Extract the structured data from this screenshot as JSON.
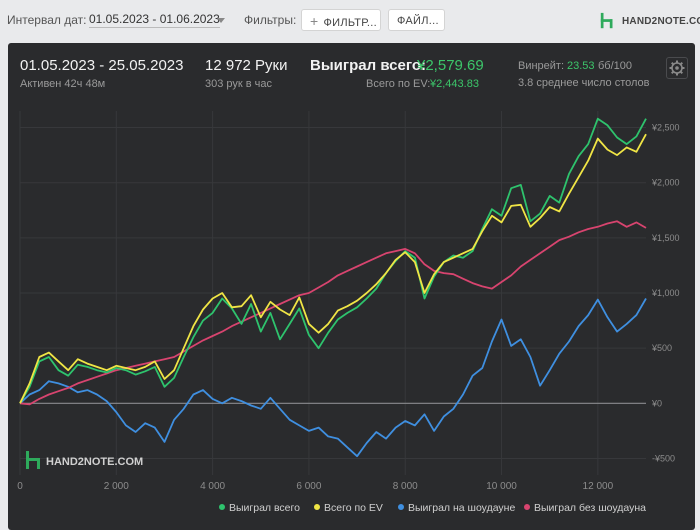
{
  "toolbar": {
    "interval_label": "Интервал дат:",
    "interval_value": "01.05.2023 - 01.06.2023",
    "filters_label": "Фильтры:",
    "filter_button": "ФИЛЬТР...",
    "file_button": "ФАЙЛ..."
  },
  "brand": {
    "logo_text": "HAND2NOTE.COM",
    "icon": "hand2note-logo-icon"
  },
  "summary": {
    "date_range": "01.05.2023 - 25.05.2023",
    "active": "Активен 42ч 48м",
    "hands": "12 972 Руки",
    "hands_rate": "303 рук в час",
    "won_total_label": "Выиграл всего:",
    "won_total_value": "¥2,579.69",
    "ev_label": "Всего по EV:",
    "ev_value": "¥2,443.83",
    "winrate_label": "Винрейт:",
    "winrate_value": "23.53",
    "winrate_unit": "бб/100",
    "tables": "3.8 среднее число столов",
    "settings_icon": "gear-icon"
  },
  "watermark": "HAND2NOTE.COM",
  "colors": {
    "won": "#2ec36d",
    "ev": "#f0e545",
    "showdown": "#3f8fe0",
    "nonshowdown": "#d8446f",
    "accent_green": "#3cc66a"
  },
  "chart_data": {
    "type": "line",
    "xlabel": "",
    "ylabel": "",
    "xlim": [
      0,
      13000
    ],
    "ylim": [
      -650,
      2650
    ],
    "x_ticks": [
      0,
      2000,
      4000,
      6000,
      8000,
      10000,
      12000
    ],
    "x_tick_labels": [
      "0",
      "2 000",
      "4 000",
      "6 000",
      "8 000",
      "10 000",
      "12 000"
    ],
    "y_ticks": [
      -500,
      0,
      500,
      1000,
      1500,
      2000,
      2500
    ],
    "y_tick_labels": [
      "-¥500",
      "¥0",
      "¥500",
      "¥1,000",
      "¥1,500",
      "¥2,000",
      "¥2,500"
    ],
    "zero_line": 0,
    "legend_position": "bottom-right",
    "series": [
      {
        "name": "Выиграл всего",
        "color": "#2ec36d",
        "x": [
          0,
          200,
          400,
          600,
          800,
          1000,
          1200,
          1400,
          1600,
          1800,
          2000,
          2200,
          2400,
          2600,
          2800,
          3000,
          3200,
          3400,
          3600,
          3800,
          4000,
          4200,
          4400,
          4600,
          4800,
          5000,
          5200,
          5400,
          5600,
          5800,
          6000,
          6200,
          6400,
          6600,
          6800,
          7000,
          7200,
          7400,
          7600,
          7800,
          8000,
          8200,
          8400,
          8600,
          8800,
          9000,
          9200,
          9400,
          9600,
          9800,
          10000,
          10200,
          10400,
          10600,
          10800,
          11000,
          11200,
          11400,
          11600,
          11800,
          12000,
          12200,
          12400,
          12600,
          12800,
          13000
        ],
        "y": [
          0,
          150,
          380,
          420,
          300,
          250,
          350,
          330,
          300,
          280,
          320,
          300,
          260,
          290,
          330,
          150,
          230,
          420,
          600,
          750,
          820,
          950,
          860,
          720,
          900,
          650,
          820,
          580,
          720,
          860,
          620,
          500,
          640,
          760,
          820,
          870,
          950,
          1040,
          1180,
          1290,
          1380,
          1320,
          950,
          1150,
          1280,
          1340,
          1320,
          1380,
          1580,
          1760,
          1700,
          1950,
          1980,
          1650,
          1720,
          1880,
          1820,
          2080,
          2240,
          2350,
          2580,
          2520,
          2410,
          2350,
          2420,
          2580
        ]
      },
      {
        "name": "Всего по EV",
        "color": "#f0e545",
        "x": [
          0,
          200,
          400,
          600,
          800,
          1000,
          1200,
          1400,
          1600,
          1800,
          2000,
          2200,
          2400,
          2600,
          2800,
          3000,
          3200,
          3400,
          3600,
          3800,
          4000,
          4200,
          4400,
          4600,
          4800,
          5000,
          5200,
          5400,
          5600,
          5800,
          6000,
          6200,
          6400,
          6600,
          6800,
          7000,
          7200,
          7400,
          7600,
          7800,
          8000,
          8200,
          8400,
          8600,
          8800,
          9000,
          9200,
          9400,
          9600,
          9800,
          10000,
          10200,
          10400,
          10600,
          10800,
          11000,
          11200,
          11400,
          11600,
          11800,
          12000,
          12200,
          12400,
          12600,
          12800,
          13000
        ],
        "y": [
          0,
          180,
          420,
          460,
          380,
          300,
          400,
          360,
          330,
          300,
          340,
          320,
          300,
          330,
          380,
          220,
          300,
          500,
          700,
          850,
          950,
          1000,
          870,
          880,
          980,
          780,
          920,
          850,
          800,
          960,
          720,
          640,
          720,
          840,
          880,
          930,
          1000,
          1080,
          1180,
          1300,
          1370,
          1280,
          1000,
          1170,
          1280,
          1320,
          1360,
          1400,
          1560,
          1700,
          1640,
          1790,
          1800,
          1600,
          1680,
          1780,
          1740,
          1900,
          2050,
          2200,
          2400,
          2300,
          2250,
          2320,
          2280,
          2440
        ]
      },
      {
        "name": "Выиграл на шоудауне",
        "color": "#3f8fe0",
        "x": [
          0,
          200,
          400,
          600,
          800,
          1000,
          1200,
          1400,
          1600,
          1800,
          2000,
          2200,
          2400,
          2600,
          2800,
          3000,
          3200,
          3400,
          3600,
          3800,
          4000,
          4200,
          4400,
          4600,
          4800,
          5000,
          5200,
          5400,
          5600,
          5800,
          6000,
          6200,
          6400,
          6600,
          6800,
          7000,
          7200,
          7400,
          7600,
          7800,
          8000,
          8200,
          8400,
          8600,
          8800,
          9000,
          9200,
          9400,
          9600,
          9800,
          10000,
          10200,
          10400,
          10600,
          10800,
          11000,
          11200,
          11400,
          11600,
          11800,
          12000,
          12200,
          12400,
          12600,
          12800,
          13000
        ],
        "y": [
          0,
          80,
          120,
          200,
          180,
          150,
          100,
          120,
          80,
          20,
          -80,
          -200,
          -260,
          -180,
          -220,
          -350,
          -150,
          -50,
          80,
          120,
          40,
          0,
          50,
          20,
          -20,
          -50,
          50,
          -50,
          -150,
          -200,
          -250,
          -220,
          -300,
          -320,
          -400,
          -480,
          -360,
          -260,
          -320,
          -220,
          -160,
          -200,
          -100,
          -250,
          -120,
          -50,
          80,
          250,
          320,
          560,
          760,
          520,
          580,
          420,
          160,
          300,
          450,
          560,
          700,
          800,
          940,
          780,
          650,
          720,
          800,
          950
        ]
      },
      {
        "name": "Выиграл без шоудауна",
        "color": "#d8446f",
        "x": [
          0,
          200,
          400,
          600,
          800,
          1000,
          1200,
          1400,
          1600,
          1800,
          2000,
          2200,
          2400,
          2600,
          2800,
          3000,
          3200,
          3400,
          3600,
          3800,
          4000,
          4200,
          4400,
          4600,
          4800,
          5000,
          5200,
          5400,
          5600,
          5800,
          6000,
          6200,
          6400,
          6600,
          6800,
          7000,
          7200,
          7400,
          7600,
          7800,
          8000,
          8200,
          8400,
          8600,
          8800,
          9000,
          9200,
          9400,
          9600,
          9800,
          10000,
          10200,
          10400,
          10600,
          10800,
          11000,
          11200,
          11400,
          11600,
          11800,
          12000,
          12200,
          12400,
          12600,
          12800,
          13000
        ],
        "y": [
          0,
          -10,
          40,
          80,
          110,
          140,
          180,
          210,
          240,
          270,
          300,
          320,
          340,
          360,
          380,
          400,
          420,
          470,
          520,
          570,
          610,
          650,
          700,
          740,
          780,
          820,
          860,
          900,
          940,
          980,
          1000,
          1050,
          1100,
          1160,
          1200,
          1240,
          1280,
          1320,
          1360,
          1380,
          1400,
          1360,
          1260,
          1200,
          1180,
          1170,
          1130,
          1090,
          1060,
          1040,
          1100,
          1160,
          1240,
          1300,
          1360,
          1420,
          1480,
          1510,
          1550,
          1580,
          1600,
          1630,
          1650,
          1600,
          1640,
          1590
        ]
      }
    ]
  }
}
